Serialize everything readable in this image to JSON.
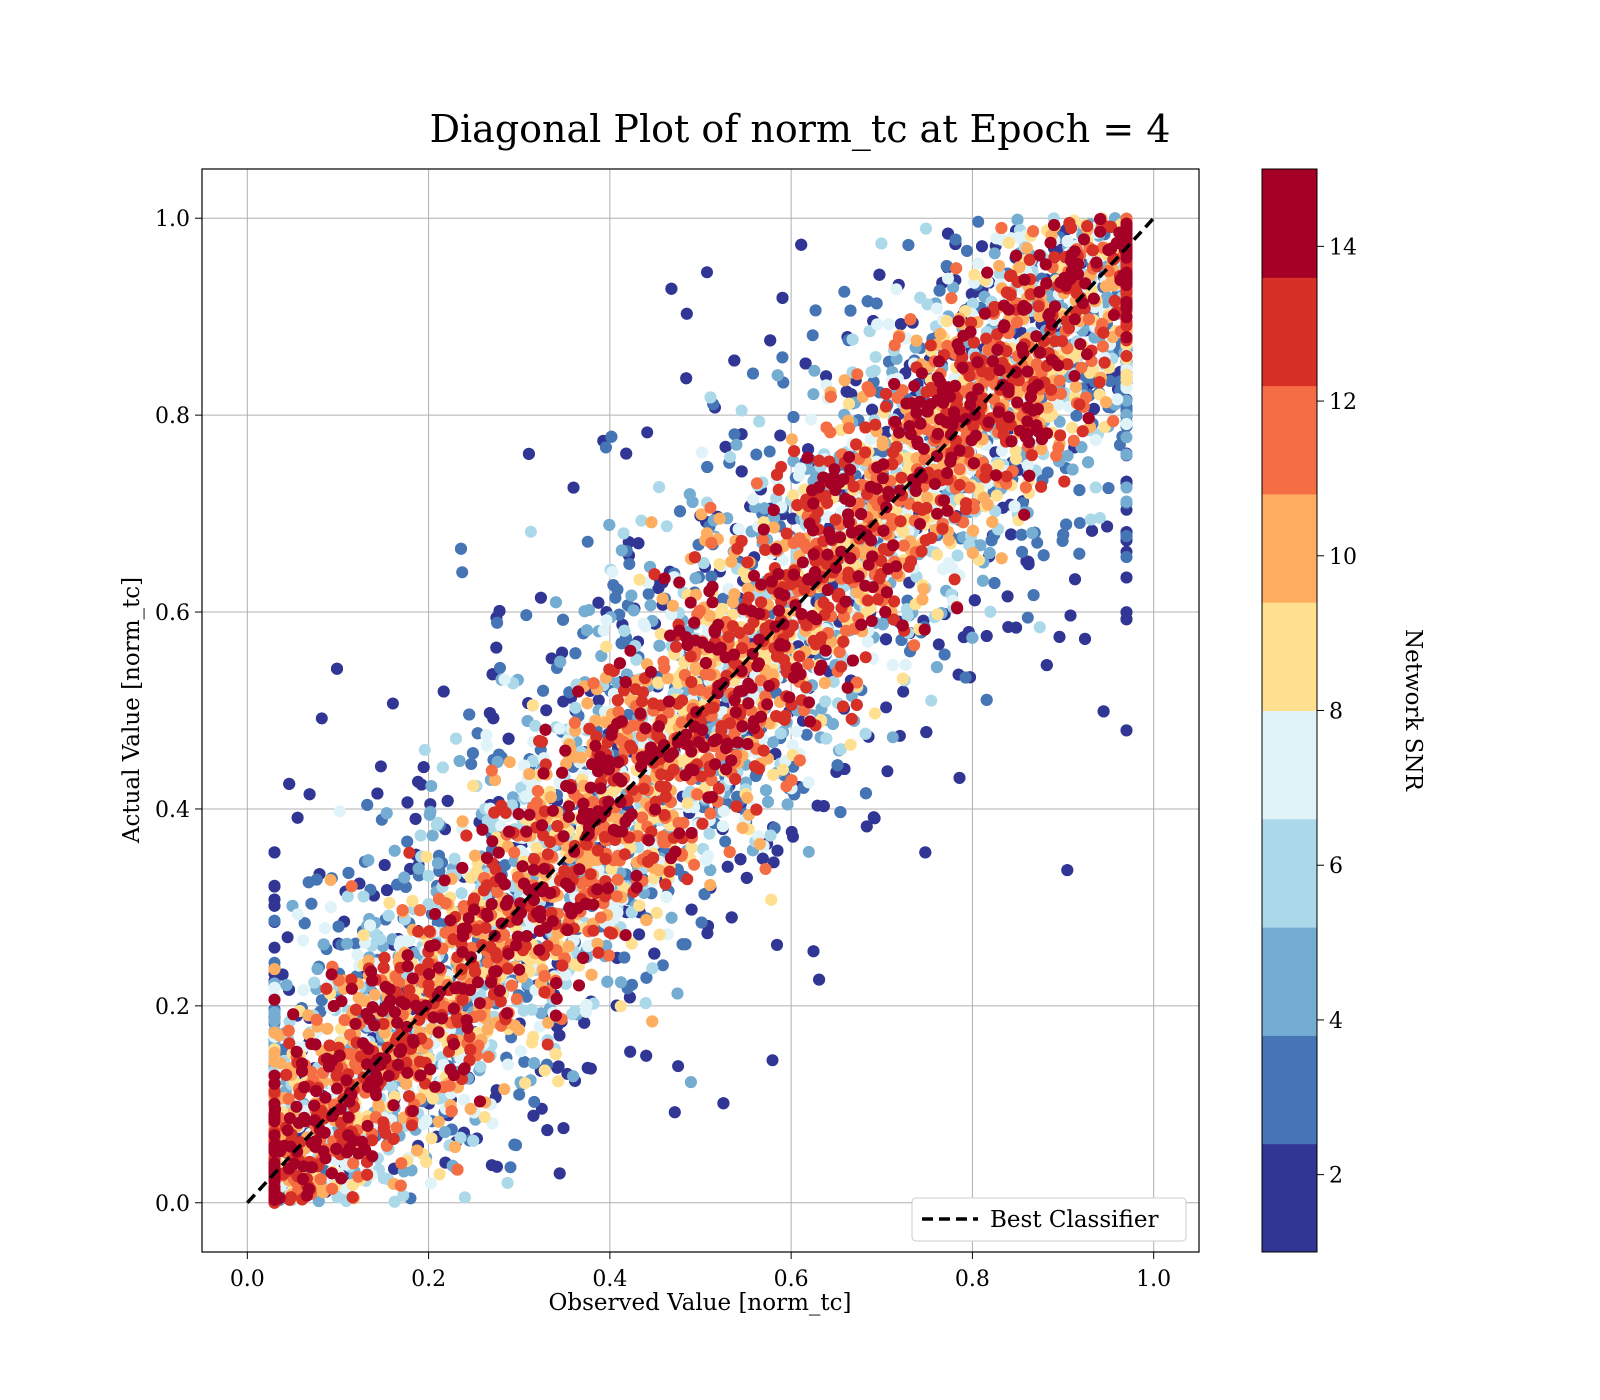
{
  "chart_data": {
    "type": "scatter",
    "title": "Diagonal Plot of norm_tc at Epoch = 4",
    "xlabel": "Observed Value [norm_tc]",
    "ylabel": "Actual Value [norm_tc]",
    "xlim": [
      -0.05,
      1.05
    ],
    "ylim": [
      -0.05,
      1.05
    ],
    "xticks": [
      "0.0",
      "0.2",
      "0.4",
      "0.6",
      "0.8",
      "1.0"
    ],
    "yticks": [
      "0.0",
      "0.2",
      "0.4",
      "0.6",
      "0.8",
      "1.0"
    ],
    "grid": true,
    "reference_line": {
      "label": "Best Classifier",
      "x": [
        0,
        1
      ],
      "y": [
        0,
        1
      ],
      "style": "dashed",
      "color": "#000000"
    },
    "legend_position": "bottom-right",
    "colorbar": {
      "label": "Network SNR",
      "range": [
        1,
        15
      ],
      "ticks": [
        "2",
        "4",
        "6",
        "8",
        "10",
        "12",
        "14"
      ],
      "colors": [
        "#313695",
        "#4575b4",
        "#74add1",
        "#abd9e9",
        "#e0f3f8",
        "#fee090",
        "#fdae61",
        "#f46d43",
        "#d73027",
        "#a50026"
      ]
    },
    "point_density": "dense cloud of points along the diagonal; high SNR (~14) points concentrated near y = x, lower SNR points spread farther away toward top-left and bottom-right",
    "x_point_range": [
      0.03,
      0.97
    ],
    "y_point_range": [
      0.0,
      1.0
    ]
  }
}
